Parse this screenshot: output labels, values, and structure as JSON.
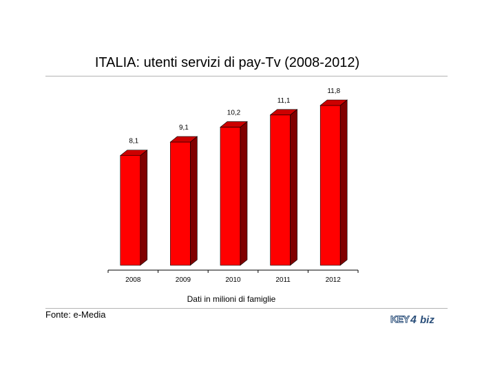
{
  "title": "ITALIA: utenti servizi di pay-Tv (2008-2012)",
  "caption": "Dati in milioni di famiglie",
  "source": "Fonte: e-Media",
  "logo": {
    "text_left": "KEY",
    "text_right": "biz",
    "digit": "4"
  },
  "colors": {
    "bar_front": "#ff0000",
    "bar_side": "#800000",
    "bar_top": "#cc0000",
    "axis": "#000000"
  },
  "chart_data": {
    "type": "bar",
    "categories": [
      "2008",
      "2009",
      "2010",
      "2011",
      "2012"
    ],
    "values": [
      8.1,
      9.1,
      10.2,
      11.1,
      11.8
    ],
    "value_labels": [
      "8,1",
      "9,1",
      "10,2",
      "11,1",
      "11,8"
    ],
    "ylim": [
      0,
      11.8
    ],
    "grid": false,
    "three_d": true
  }
}
